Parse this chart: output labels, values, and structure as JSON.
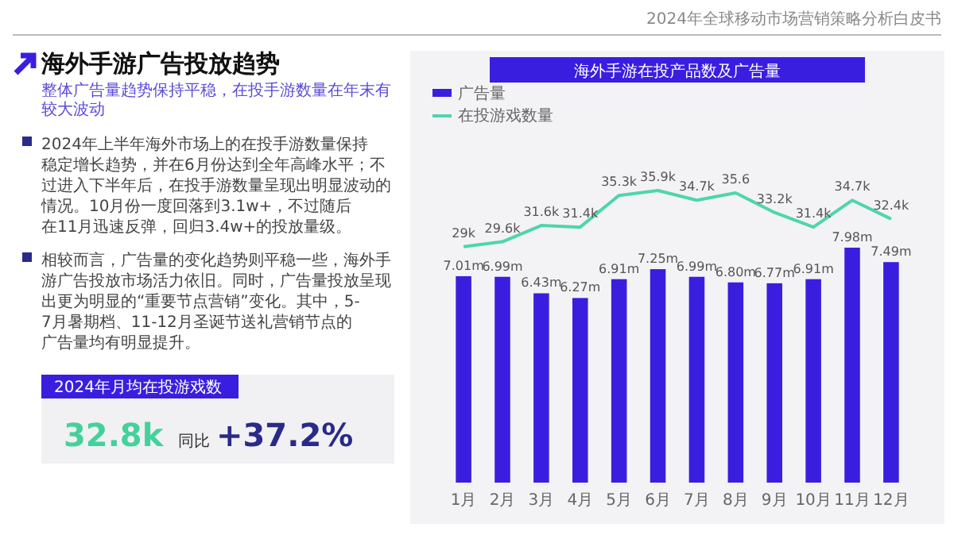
{
  "chart_data": {
    "type": "bar",
    "title": "海外手游在投产品数及广告量",
    "annotations": [
      "2024年全球移动市场营销策略分析白皮书",
      "海外手游广告投放趋势",
      "整体广告量趋势保持平稳，在投手游数量在年末有较大波动",
      "2024年上半年海外市场上的在投手游数量保持稳定增长趋势，并在6月份达到全年高峰水平；不过进入下半年后，在投手游数量呈现出明显波动的情况。10月份一度回落到3.1w+，不过随后在11月迅速反弹，回归3.4w+的投放量级。",
      "相较而言，广告量的变化趋势则平稳一些，海外手游广告投放市场活力依旧。同时，广告量投放呈现出更为明显的“重要节点营销”变化。其中，5-7月暑期档、11-12月圣诞节送礼营销节点的广告量均有明显提升。",
      "2024年月均在投游戏数",
      "32.8k",
      "同比",
      "+37.2%"
    ],
    "categories": [
      "1月",
      "2月",
      "3月",
      "4月",
      "5月",
      "6月",
      "7月",
      "8月",
      "9月",
      "10月",
      "11月",
      "12月"
    ],
    "series": [
      {
        "name": "广告量",
        "color": "#3a1ee0",
        "values": [
          7.01,
          6.99,
          6.43,
          6.27,
          6.91,
          7.25,
          6.99,
          6.8,
          6.77,
          6.91,
          7.98,
          7.49
        ],
        "value_labels": [
          "7.01m",
          "6.99m",
          "6.43m",
          "6.27m",
          "6.91m",
          "7.25m",
          "6.99m",
          "6.80m",
          "6.77m",
          "6.91m",
          "7.98m",
          "7.49m"
        ]
      },
      {
        "name": "在投游戏数量",
        "type": "line",
        "axis": "y2",
        "color": "#4fd6a8",
        "values": [
          29,
          29.6,
          31.6,
          31.4,
          35.3,
          35.9,
          34.7,
          35.6,
          33.2,
          31.4,
          34.7,
          32.4
        ],
        "value_labels": [
          "29k",
          "29.6k",
          "31.6k",
          "31.4k",
          "35.3k",
          "35.9k",
          "34.7k",
          "35.6",
          "33.2k",
          "31.4k",
          "34.7k",
          "32.4k"
        ]
      }
    ],
    "legend": "top left",
    "tick_labels": "x"
  }
}
